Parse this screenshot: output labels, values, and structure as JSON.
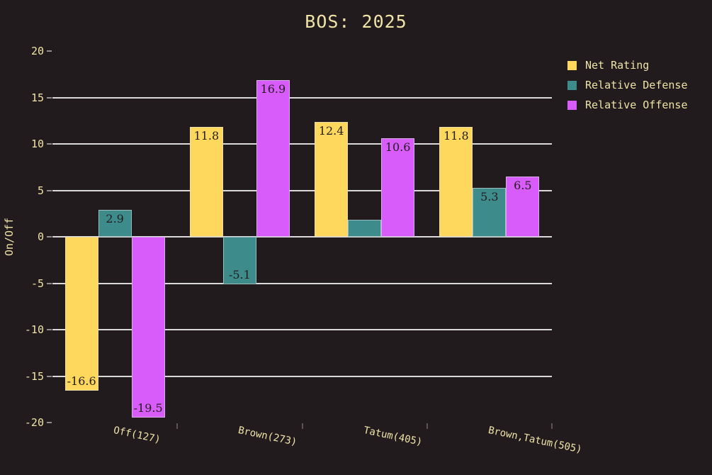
{
  "style": {
    "background": "#221b1d",
    "text_color": "#f0e3a8",
    "gridline_color": "#d9d9d9",
    "bar_label_color": "#241b1d",
    "bar_border_color": "#dce0e0"
  },
  "chart_data": {
    "type": "bar",
    "title": "BOS: 2025",
    "ylabel": "On/Off",
    "ylim": [
      -20,
      20
    ],
    "yticks": [
      20,
      15,
      10,
      5,
      0,
      -5,
      -10,
      -15,
      -20
    ],
    "grid": "horizontal",
    "legend_position": "outside-right",
    "categories": [
      "Off(127)",
      "Brown(273)",
      "Tatum(405)",
      "Brown,Tatum(505)"
    ],
    "series": [
      {
        "name": "Net Rating",
        "color": "#fdd85d",
        "values": [
          -16.6,
          11.8,
          12.4,
          11.8
        ],
        "bar_labels": [
          "-16.6",
          "11.8",
          "12.4",
          "11.8"
        ]
      },
      {
        "name": "Relative Defense",
        "color": "#3e8b8b",
        "values": [
          2.9,
          -5.1,
          1.8,
          5.3
        ],
        "bar_labels": [
          "2.9",
          "-5.1",
          "",
          "5.3"
        ]
      },
      {
        "name": "Relative Offense",
        "color": "#d85cfa",
        "values": [
          -19.5,
          16.9,
          10.6,
          6.5
        ],
        "bar_labels": [
          "-19.5",
          "16.9",
          "10.6",
          "6.5"
        ]
      }
    ]
  }
}
